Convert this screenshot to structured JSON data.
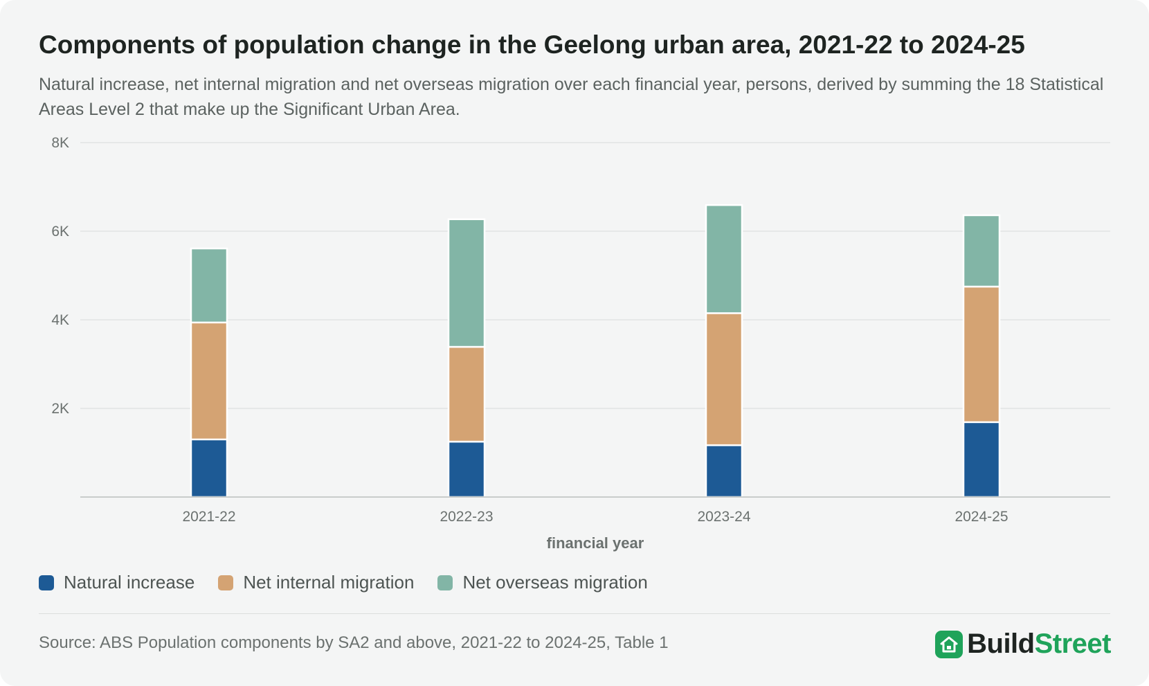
{
  "title": "Components of population change in the Geelong urban area, 2021-22 to 2024-25",
  "subtitle": "Natural increase, net internal migration and net overseas migration over each financial year, persons, derived by summing the 18 Statistical Areas Level 2 that make up the Significant Urban Area.",
  "source": "Source: ABS Population components by SA2 and above, 2021-22 to 2024-25, Table 1",
  "brand": {
    "part1": "Build",
    "part2": "Street",
    "icon": "house-icon"
  },
  "colors": {
    "natural": "#1d5a95",
    "internal": "#d4a373",
    "overseas": "#82b5a6",
    "brand": "#1fa35a"
  },
  "chart_data": {
    "type": "bar",
    "stacked": true,
    "categories": [
      "2021-22",
      "2022-23",
      "2023-24",
      "2024-25"
    ],
    "series": [
      {
        "name": "Natural increase",
        "values": [
          1300,
          1250,
          1170,
          1690
        ],
        "color": "#1d5a95"
      },
      {
        "name": "Net internal migration",
        "values": [
          2640,
          2140,
          2980,
          3060
        ],
        "color": "#d4a373"
      },
      {
        "name": "Net overseas migration",
        "values": [
          1670,
          2880,
          2440,
          1610
        ],
        "color": "#82b5a6"
      }
    ],
    "xlabel": "financial year",
    "ylabel": "",
    "ylim": [
      0,
      8000
    ],
    "yticks": [
      {
        "value": 2000,
        "label": "2K"
      },
      {
        "value": 4000,
        "label": "4K"
      },
      {
        "value": 6000,
        "label": "6K"
      },
      {
        "value": 8000,
        "label": "8K"
      }
    ],
    "grid": true,
    "legend_position": "bottom-left"
  }
}
